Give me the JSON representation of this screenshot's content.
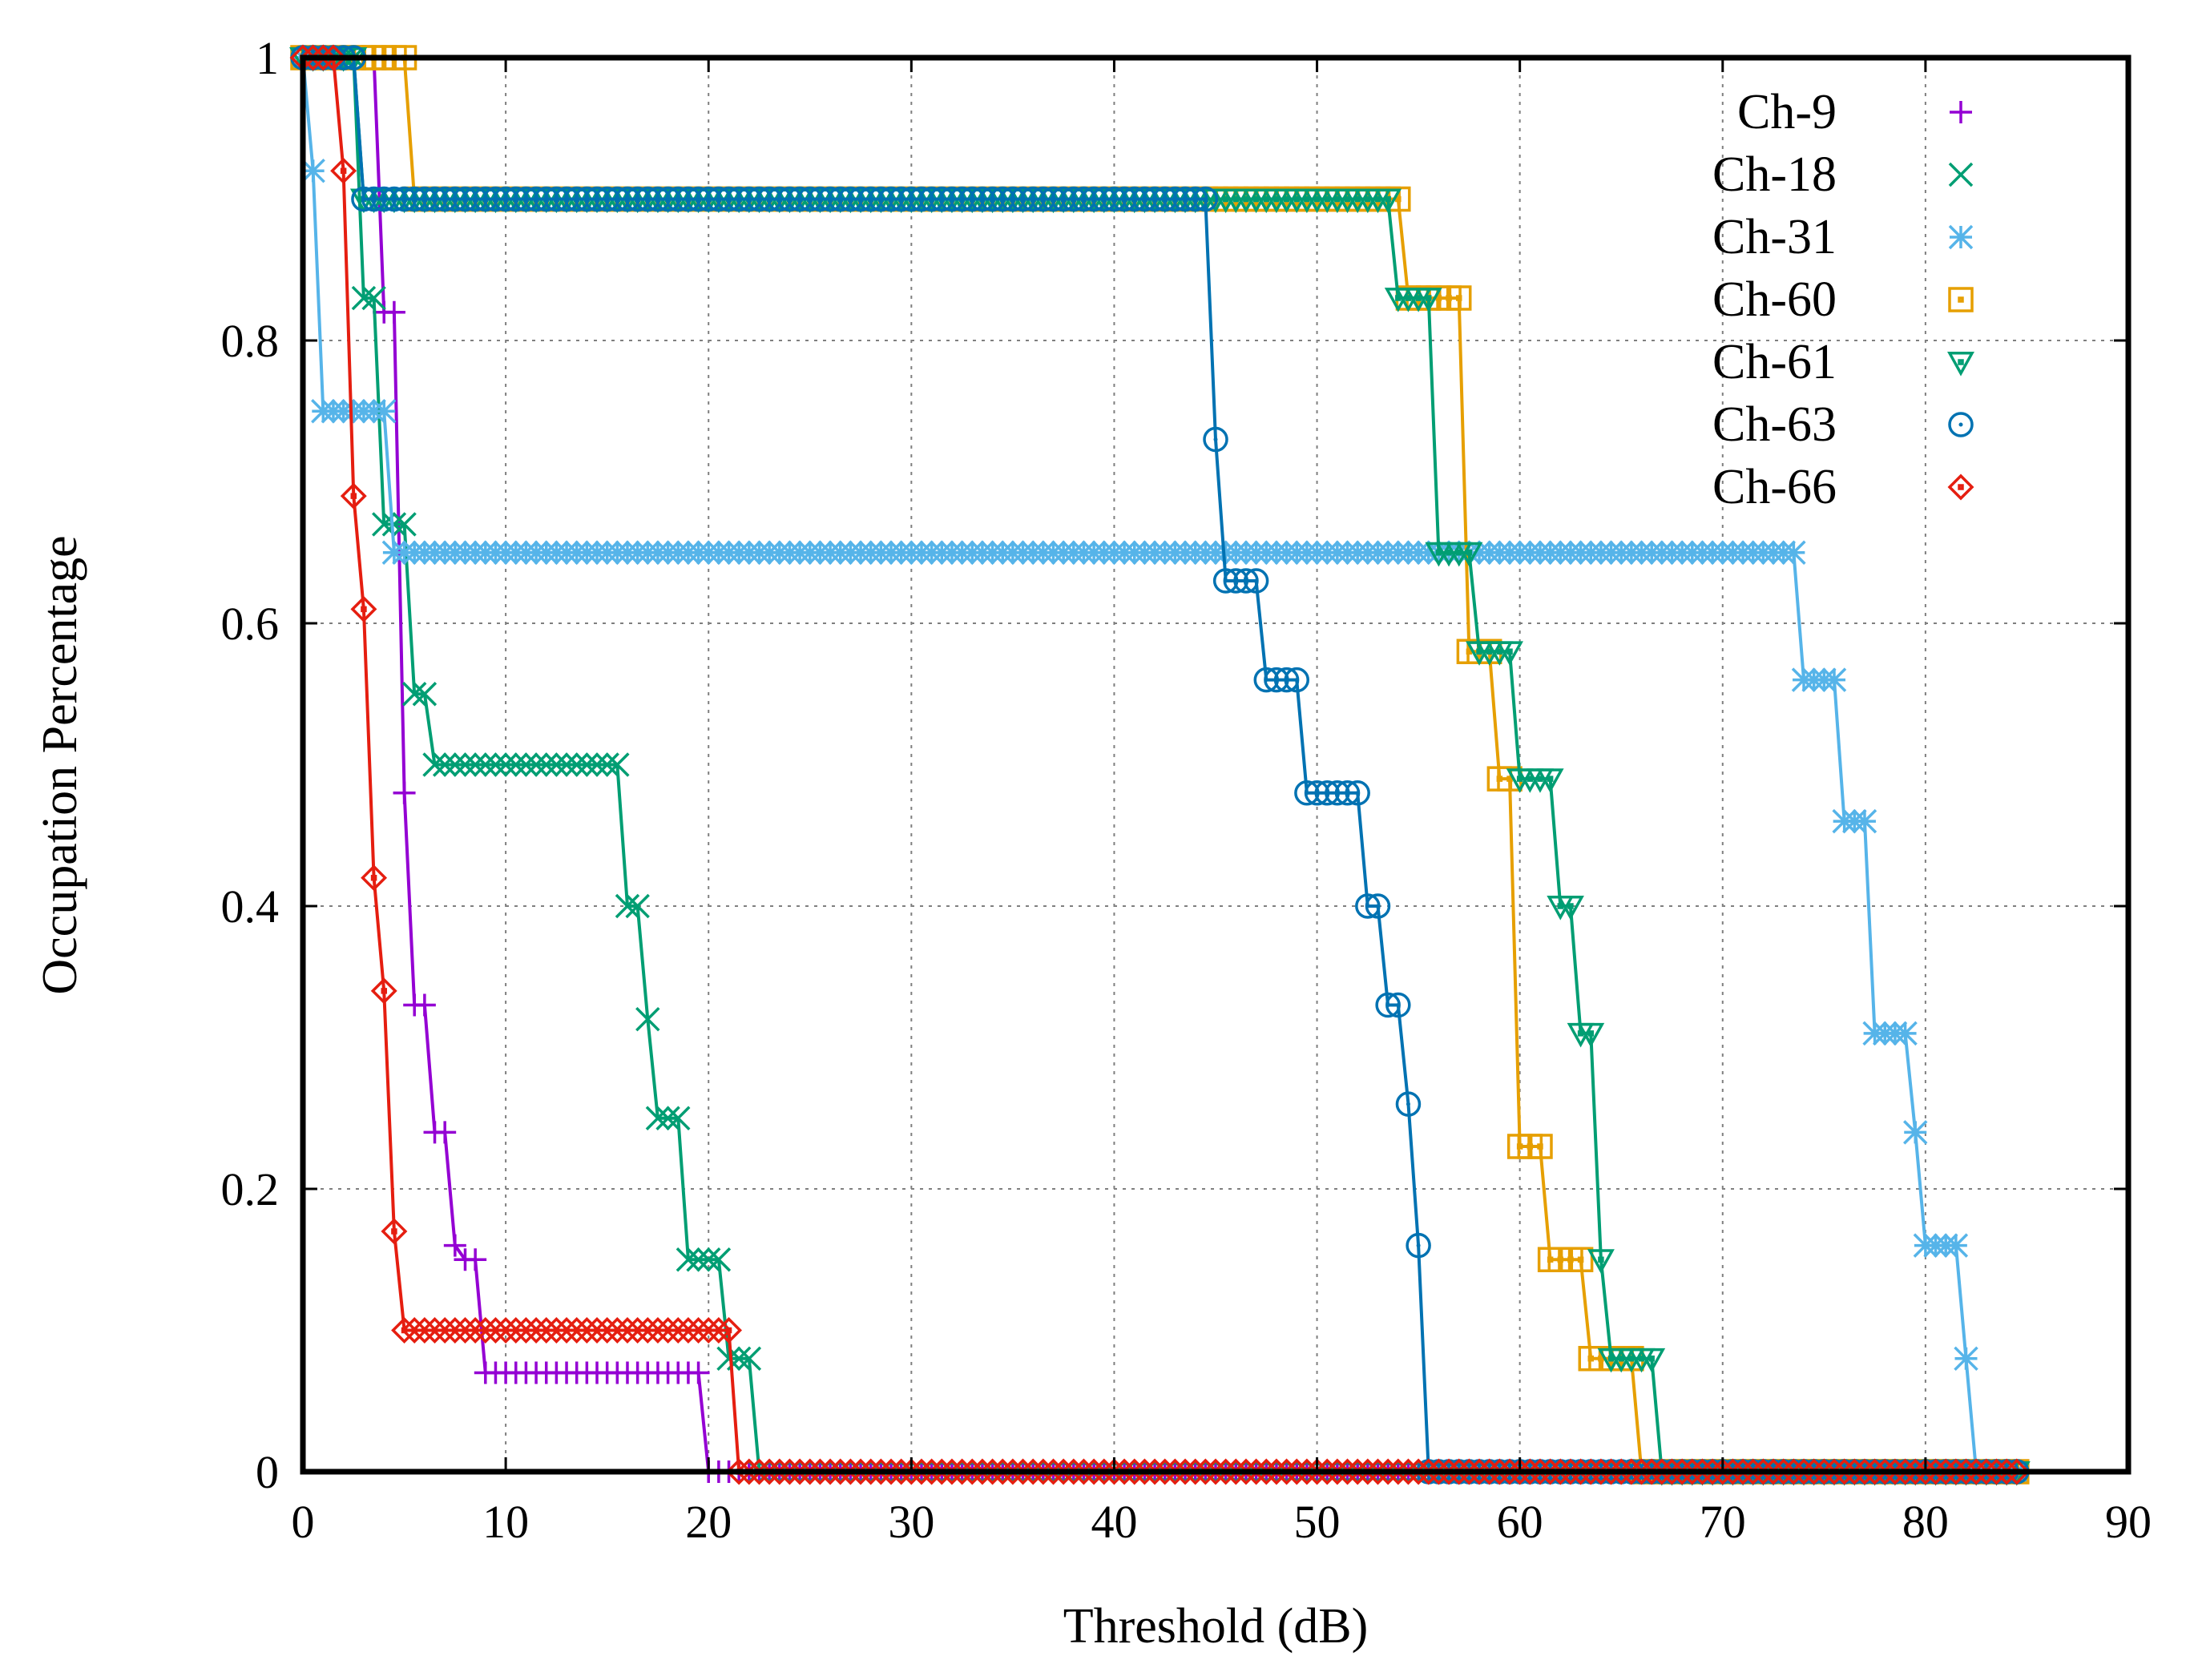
{
  "chart_data": {
    "type": "line",
    "title": "",
    "xlabel": "Threshold (dB)",
    "ylabel": "Occupation Percentage",
    "xlim": [
      0,
      90
    ],
    "ylim": [
      0,
      1
    ],
    "xticks": [
      0,
      10,
      20,
      30,
      40,
      50,
      60,
      70,
      80,
      90
    ],
    "yticks": [
      0,
      0.2,
      0.4,
      0.6,
      0.8,
      1
    ],
    "xtick_labels": [
      "0",
      "10",
      "20",
      "30",
      "40",
      "50",
      "60",
      "70",
      "80",
      "90"
    ],
    "ytick_labels": [
      "0",
      "0.2",
      "0.4",
      "0.6",
      "0.8",
      "1"
    ],
    "grid": true,
    "legend_position": "top-right",
    "sample_step": 0.5,
    "x_max": 84.5,
    "series": [
      {
        "name": "Ch-9",
        "color": "#9400d3",
        "marker": "plus",
        "steps": [
          [
            0,
            1
          ],
          [
            3.5,
            1
          ],
          [
            4,
            0.82
          ],
          [
            5,
            0.48
          ],
          [
            5.5,
            0.33
          ],
          [
            6,
            0.33
          ],
          [
            6.5,
            0.24
          ],
          [
            7,
            0.24
          ],
          [
            7.5,
            0.16
          ],
          [
            8,
            0.15
          ],
          [
            8.5,
            0.15
          ],
          [
            9,
            0.07
          ],
          [
            19.5,
            0.07
          ],
          [
            20,
            0
          ]
        ]
      },
      {
        "name": "Ch-18",
        "color": "#009e73",
        "marker": "x",
        "steps": [
          [
            0,
            1
          ],
          [
            2.5,
            1
          ],
          [
            3,
            0.83
          ],
          [
            4,
            0.67
          ],
          [
            5,
            0.67
          ],
          [
            5.5,
            0.55
          ],
          [
            6,
            0.55
          ],
          [
            6.5,
            0.5
          ],
          [
            15.5,
            0.5
          ],
          [
            16,
            0.4
          ],
          [
            17,
            0.32
          ],
          [
            17.5,
            0.25
          ],
          [
            18,
            0.25
          ],
          [
            18.5,
            0.25
          ],
          [
            19,
            0.15
          ],
          [
            20.5,
            0.15
          ],
          [
            21,
            0.08
          ],
          [
            21.5,
            0.08
          ],
          [
            22,
            0.08
          ],
          [
            22.5,
            0
          ]
        ]
      },
      {
        "name": "Ch-31",
        "color": "#56b4e9",
        "marker": "star",
        "steps": [
          [
            0,
            1
          ],
          [
            0.5,
            0.92
          ],
          [
            1,
            0.75
          ],
          [
            4,
            0.75
          ],
          [
            4.5,
            0.65
          ],
          [
            73.5,
            0.65
          ],
          [
            74,
            0.56
          ],
          [
            75.5,
            0.56
          ],
          [
            76,
            0.46
          ],
          [
            77,
            0.46
          ],
          [
            77.5,
            0.31
          ],
          [
            79,
            0.31
          ],
          [
            79.5,
            0.24
          ],
          [
            80,
            0.16
          ],
          [
            81.5,
            0.16
          ],
          [
            82,
            0.08
          ],
          [
            82.5,
            0
          ]
        ]
      },
      {
        "name": "Ch-60",
        "color": "#e69f00",
        "marker": "square",
        "steps": [
          [
            0,
            1
          ],
          [
            5,
            1
          ],
          [
            5.5,
            0.9
          ],
          [
            54,
            0.9
          ],
          [
            54.5,
            0.83
          ],
          [
            57,
            0.83
          ],
          [
            57.5,
            0.58
          ],
          [
            58.5,
            0.58
          ],
          [
            59,
            0.49
          ],
          [
            59.5,
            0.49
          ],
          [
            60,
            0.23
          ],
          [
            61,
            0.23
          ],
          [
            61.5,
            0.15
          ],
          [
            63,
            0.15
          ],
          [
            63.5,
            0.08
          ],
          [
            65.5,
            0.08
          ],
          [
            66,
            0
          ]
        ]
      },
      {
        "name": "Ch-61",
        "color": "#009e73",
        "marker": "triangle-down",
        "steps": [
          [
            0,
            1
          ],
          [
            2.5,
            1
          ],
          [
            3,
            0.9
          ],
          [
            53.5,
            0.9
          ],
          [
            54,
            0.83
          ],
          [
            55.5,
            0.83
          ],
          [
            56,
            0.65
          ],
          [
            57.5,
            0.65
          ],
          [
            58,
            0.58
          ],
          [
            59.5,
            0.58
          ],
          [
            60,
            0.49
          ],
          [
            61.5,
            0.49
          ],
          [
            62,
            0.4
          ],
          [
            63,
            0.31
          ],
          [
            63.5,
            0.31
          ],
          [
            64,
            0.15
          ],
          [
            64.5,
            0.08
          ],
          [
            66.5,
            0.08
          ],
          [
            67,
            0
          ]
        ]
      },
      {
        "name": "Ch-63",
        "color": "#0072b2",
        "marker": "circle",
        "steps": [
          [
            0,
            1
          ],
          [
            2.5,
            1
          ],
          [
            3,
            0.9
          ],
          [
            44.5,
            0.9
          ],
          [
            45,
            0.73
          ],
          [
            45.5,
            0.63
          ],
          [
            47,
            0.63
          ],
          [
            47.5,
            0.56
          ],
          [
            49,
            0.56
          ],
          [
            49.5,
            0.48
          ],
          [
            52,
            0.48
          ],
          [
            52.5,
            0.4
          ],
          [
            53,
            0.4
          ],
          [
            53.5,
            0.33
          ],
          [
            54,
            0.33
          ],
          [
            54.5,
            0.26
          ],
          [
            55,
            0.16
          ],
          [
            55.5,
            0
          ]
        ]
      },
      {
        "name": "Ch-66",
        "color": "#e51e10",
        "marker": "diamond",
        "steps": [
          [
            0,
            1
          ],
          [
            1.5,
            1
          ],
          [
            2,
            0.92
          ],
          [
            2.5,
            0.69
          ],
          [
            3,
            0.61
          ],
          [
            3.5,
            0.42
          ],
          [
            4,
            0.34
          ],
          [
            4.5,
            0.17
          ],
          [
            5,
            0.1
          ],
          [
            21,
            0.1
          ],
          [
            21.5,
            0
          ]
        ]
      }
    ]
  }
}
